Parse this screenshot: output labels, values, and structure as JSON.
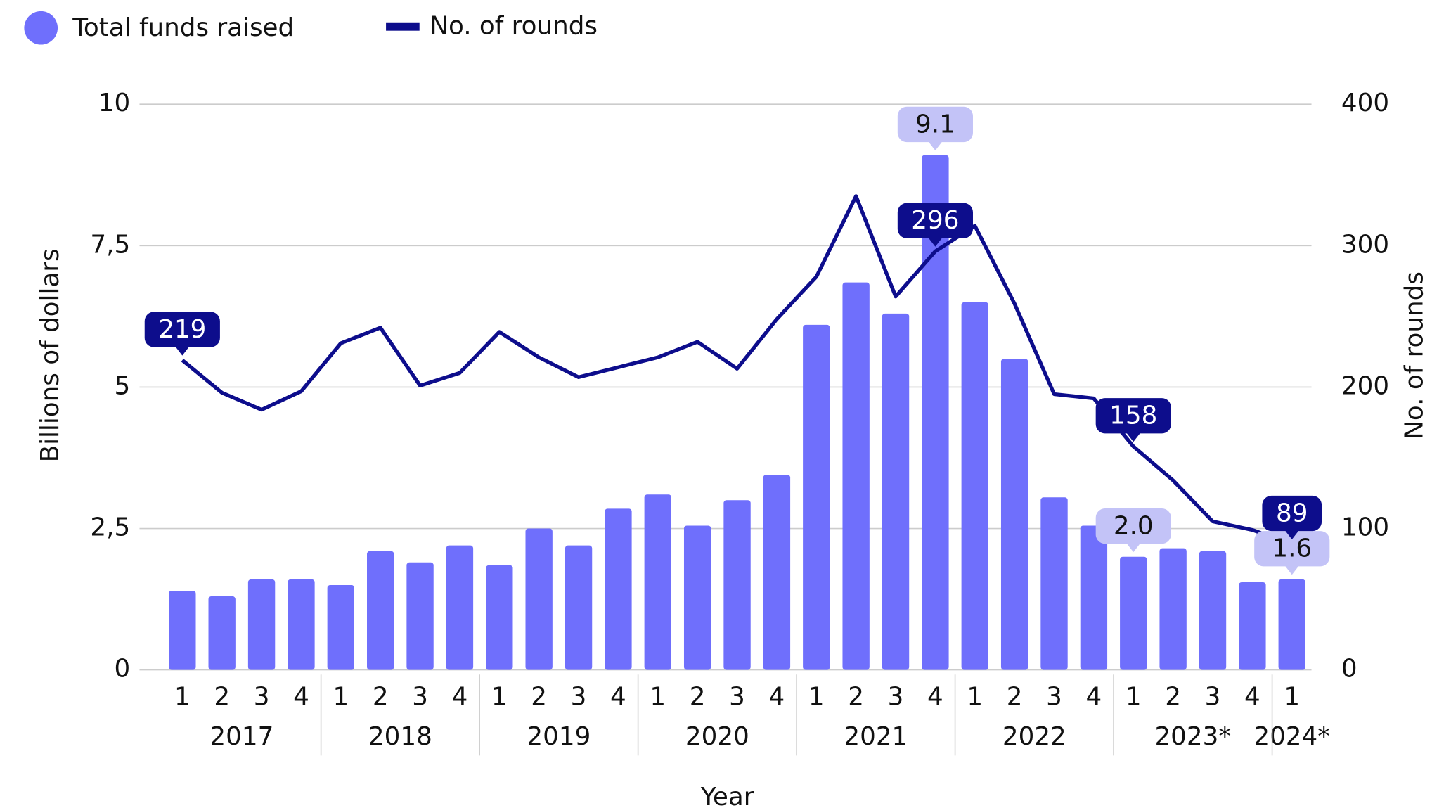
{
  "chart_data": {
    "type": "bar_line",
    "x_label": "Year",
    "y_label": "Billions of dollars",
    "y2_label": "No. of rounds",
    "categories": [
      "1",
      "2",
      "3",
      "4",
      "1",
      "2",
      "3",
      "4",
      "1",
      "2",
      "3",
      "4",
      "1",
      "2",
      "3",
      "4",
      "1",
      "2",
      "3",
      "4",
      "1",
      "2",
      "3",
      "4",
      "1",
      "2",
      "3",
      "4",
      "1"
    ],
    "groups": [
      {
        "name": "2017",
        "size": 4
      },
      {
        "name": "2018",
        "size": 4
      },
      {
        "name": "2019",
        "size": 4
      },
      {
        "name": "2020",
        "size": 4
      },
      {
        "name": "2021",
        "size": 4
      },
      {
        "name": "2022",
        "size": 4
      },
      {
        "name": "2023*",
        "size": 4
      },
      {
        "name": "2024*",
        "size": 1
      }
    ],
    "series": [
      {
        "name": "Total funds raised",
        "type": "bar",
        "color": "#6f6ffc",
        "label_color": "#c3c3f7",
        "values": [
          1.4,
          1.3,
          1.6,
          1.6,
          1.5,
          2.1,
          1.9,
          2.2,
          1.85,
          2.5,
          2.2,
          2.85,
          3.1,
          2.55,
          3.0,
          3.45,
          6.1,
          6.85,
          6.3,
          9.1,
          6.5,
          5.5,
          3.05,
          2.55,
          2.0,
          2.15,
          2.1,
          1.55,
          1.6
        ],
        "value_labels": [
          null,
          null,
          null,
          null,
          null,
          null,
          null,
          null,
          null,
          null,
          null,
          null,
          null,
          null,
          null,
          null,
          null,
          null,
          null,
          "9.1",
          null,
          null,
          null,
          null,
          "2.0",
          null,
          null,
          null,
          "1.6"
        ]
      },
      {
        "name": "No. of rounds",
        "type": "line",
        "axis": "y2",
        "color": "#0d0d8c",
        "label_color": "#0d0d8c",
        "values": [
          219,
          196,
          184,
          197,
          231,
          242,
          201,
          210,
          239,
          221,
          207,
          214,
          221,
          232,
          213,
          248,
          278,
          335,
          264,
          296,
          314,
          259,
          195,
          192,
          158,
          134,
          105,
          99,
          89
        ],
        "value_labels": [
          "219",
          null,
          null,
          null,
          null,
          null,
          null,
          null,
          null,
          null,
          null,
          null,
          null,
          null,
          null,
          null,
          null,
          null,
          null,
          "296",
          null,
          null,
          null,
          null,
          "158",
          null,
          null,
          null,
          "89"
        ]
      }
    ],
    "ylim": [
      0,
      10
    ],
    "yticks": [
      0,
      {
        "value": 2.5,
        "label": "2,5"
      },
      5,
      {
        "value": 7.5,
        "label": "7,5"
      },
      10
    ],
    "y2lim": [
      0,
      400
    ],
    "y2ticks": [
      0,
      100,
      200,
      300,
      400
    ],
    "grid": true,
    "legend": "top-left"
  }
}
